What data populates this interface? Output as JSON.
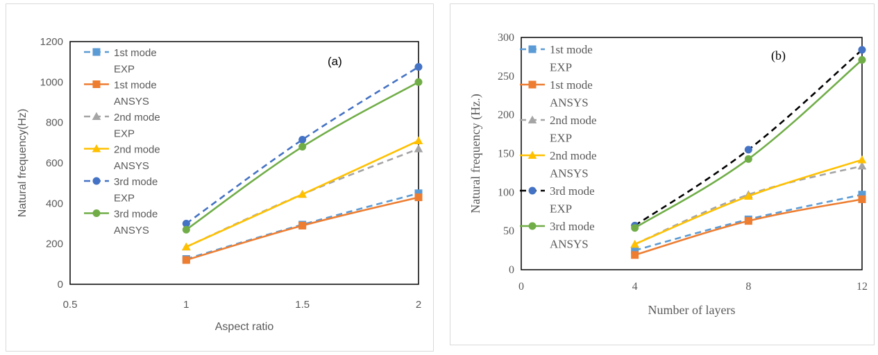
{
  "chart_data": [
    {
      "type": "line",
      "panel_label": "(a)",
      "xlabel": "Aspect ratio",
      "ylabel": "Natural frequency(Hz)",
      "xlim": [
        0.5,
        2
      ],
      "ylim": [
        0,
        1200
      ],
      "xticks": [
        0.5,
        1,
        1.5,
        2
      ],
      "xtick_labels": [
        "0.5",
        "1",
        "1.5",
        "2"
      ],
      "yticks": [
        0,
        200,
        400,
        600,
        800,
        1000,
        1200
      ],
      "ytick_labels": [
        "0",
        "200",
        "400",
        "600",
        "800",
        "1000",
        "1200"
      ],
      "grid": false,
      "legend_position": "top-left",
      "x": [
        1,
        1.5,
        2
      ],
      "series": [
        {
          "legend_line1": "1st mode",
          "legend_line2": "EXP",
          "values": [
            125,
            295,
            450
          ],
          "color": "#5B9BD5",
          "dashed": true,
          "marker": "square"
        },
        {
          "legend_line1": "1st mode",
          "legend_line2": "ANSYS",
          "values": [
            120,
            290,
            430
          ],
          "color": "#ED7D31",
          "dashed": false,
          "marker": "square"
        },
        {
          "legend_line1": "2nd mode",
          "legend_line2": "EXP",
          "values": [
            185,
            445,
            670
          ],
          "color": "#A5A5A5",
          "dashed": true,
          "marker": "triangle"
        },
        {
          "legend_line1": "2nd mode",
          "legend_line2": "ANSYS",
          "values": [
            185,
            445,
            710
          ],
          "color": "#FFC000",
          "dashed": false,
          "marker": "triangle"
        },
        {
          "legend_line1": "3rd mode",
          "legend_line2": "EXP",
          "values": [
            300,
            715,
            1075
          ],
          "color": "#4472C4",
          "dashed": true,
          "marker": "circle"
        },
        {
          "legend_line1": "3rd mode",
          "legend_line2": "ANSYS",
          "values": [
            270,
            680,
            1000
          ],
          "color": "#70AD47",
          "dashed": false,
          "marker": "circle"
        }
      ]
    },
    {
      "type": "line",
      "panel_label": "(b)",
      "xlabel": "Number of layers",
      "ylabel": "Natural frequency (Hz.)",
      "xlim": [
        0,
        12
      ],
      "ylim": [
        0,
        300
      ],
      "xticks": [
        0,
        4,
        8,
        12
      ],
      "xtick_labels": [
        "0",
        "4",
        "8",
        "12"
      ],
      "yticks": [
        0,
        50,
        100,
        150,
        200,
        250,
        300
      ],
      "ytick_labels": [
        "0",
        "50",
        "100",
        "150",
        "200",
        "250",
        "300"
      ],
      "grid": false,
      "legend_position": "top-left",
      "x": [
        4,
        8,
        12
      ],
      "series": [
        {
          "legend_line1": "1st mode",
          "legend_line2": "EXP",
          "values": [
            25,
            65,
            97
          ],
          "color": "#5B9BD5",
          "dashed": true,
          "marker": "square"
        },
        {
          "legend_line1": "1st mode",
          "legend_line2": "ANSYS",
          "values": [
            19,
            63,
            91
          ],
          "color": "#ED7D31",
          "dashed": false,
          "marker": "square"
        },
        {
          "legend_line1": "2nd mode",
          "legend_line2": "EXP",
          "values": [
            33,
            97,
            134
          ],
          "color": "#A5A5A5",
          "dashed": true,
          "marker": "triangle"
        },
        {
          "legend_line1": "2nd mode",
          "legend_line2": "ANSYS",
          "values": [
            33,
            95,
            142
          ],
          "color": "#FFC000",
          "dashed": false,
          "marker": "triangle"
        },
        {
          "legend_line1": "3rd mode",
          "legend_line2": "EXP",
          "values": [
            57,
            155,
            284
          ],
          "color": "#000000",
          "dashed": true,
          "marker": "circle",
          "marker_color": "#4472C4"
        },
        {
          "legend_line1": "3rd mode",
          "legend_line2": "ANSYS",
          "values": [
            54,
            143,
            271
          ],
          "color": "#70AD47",
          "dashed": false,
          "marker": "circle"
        }
      ]
    }
  ]
}
